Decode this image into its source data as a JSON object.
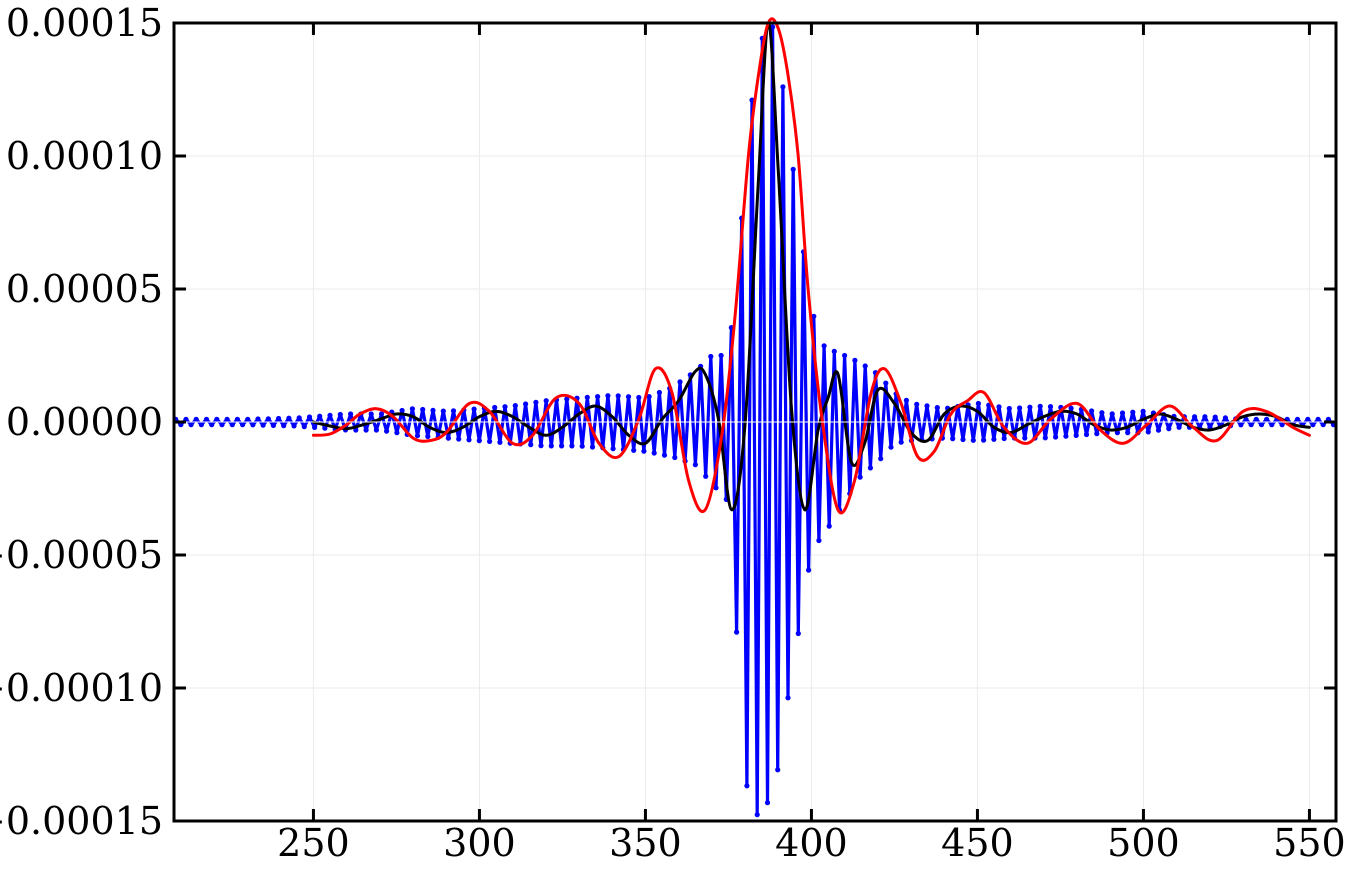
{
  "chart_data": {
    "type": "line",
    "title": "",
    "xlabel": "",
    "ylabel": "",
    "xlim": [
      208,
      558
    ],
    "ylim": [
      -0.00015,
      0.00015
    ],
    "grid": true,
    "x_tick_values": [
      250,
      300,
      350,
      400,
      450,
      500,
      550
    ],
    "x_tick_labels": [
      "250",
      "300",
      "350",
      "400",
      "450",
      "500",
      "550"
    ],
    "y_tick_values": [
      -0.00015,
      -0.0001,
      -5e-05,
      0,
      5e-05,
      0.0001,
      0.00015
    ],
    "y_tick_labels": [
      "−0.00015",
      "−0.00010",
      "−0.00005",
      "0.00000",
      "0.00005",
      "0.00010",
      "0.00015"
    ],
    "series": [
      {
        "color": "#0000ff",
        "style": "line-with-markers",
        "x": [
          215,
          230,
          245,
          260,
          270,
          280,
          290,
          300,
          310,
          320,
          330,
          340,
          350,
          358,
          365,
          370,
          375,
          378,
          381,
          384,
          386,
          388,
          390,
          392,
          395,
          398,
          402,
          406,
          410,
          415,
          420,
          425,
          430,
          440,
          450,
          460,
          470,
          480,
          490,
          500,
          510,
          520,
          530,
          540,
          550,
          556
        ],
        "y_upper": [
          1e-06,
          1e-06,
          1.5e-06,
          3e-06,
          3e-06,
          5e-06,
          4e-06,
          5e-06,
          6e-06,
          8e-06,
          9e-06,
          1e-05,
          9e-06,
          1.3e-05,
          1.9e-05,
          2.5e-05,
          2.5e-05,
          6e-05,
          0.00011,
          0.00014,
          0.000147,
          0.00015,
          0.00014,
          0.00012,
          9e-05,
          6e-05,
          3e-05,
          2.7e-05,
          2.5e-05,
          2.2e-05,
          1.8e-05,
          1.1e-05,
          7e-06,
          5e-06,
          7e-06,
          5e-06,
          6e-06,
          5e-06,
          3e-06,
          4e-06,
          2e-06,
          2e-06,
          1e-06,
          1e-06,
          1e-06,
          1e-06
        ],
        "y_lower": [
          -1e-06,
          -1e-06,
          -1.5e-06,
          -3e-06,
          -3e-06,
          -5e-06,
          -6e-06,
          -7e-06,
          -8e-06,
          -9e-06,
          -9e-06,
          -1e-05,
          -1.1e-05,
          -1.3e-05,
          -1.6e-05,
          -2.3e-05,
          -3e-05,
          -9e-05,
          -0.000145,
          -0.000148,
          -0.000145,
          -0.00014,
          -0.00013,
          -0.00011,
          -9e-05,
          -6e-05,
          -4.5e-05,
          -3.8e-05,
          -3e-05,
          -2e-05,
          -1.5e-05,
          -8e-06,
          -7e-06,
          -6e-06,
          -7e-06,
          -6e-06,
          -6e-06,
          -5e-06,
          -4e-06,
          -4e-06,
          -2e-06,
          -2e-06,
          -1e-06,
          -1e-06,
          -1e-06,
          -1e-06
        ]
      },
      {
        "color": "#000000",
        "style": "line",
        "x": [
          250,
          255,
          260,
          265,
          270,
          275,
          280,
          285,
          290,
          295,
          300,
          305,
          310,
          315,
          320,
          325,
          330,
          335,
          340,
          345,
          350,
          355,
          360,
          365,
          368,
          372,
          376,
          380,
          384,
          387,
          390,
          394,
          398,
          402,
          405,
          408,
          412,
          416,
          420,
          425,
          430,
          435,
          440,
          445,
          450,
          455,
          460,
          465,
          470,
          475,
          480,
          485,
          490,
          495,
          500,
          505,
          510,
          515,
          520,
          525,
          530,
          535,
          540,
          545,
          550
        ],
        "y": [
          0,
          -1.5e-06,
          -2.5e-06,
          -1e-06,
          1e-06,
          3e-06,
          2e-06,
          -2e-06,
          -4e-06,
          -2e-06,
          2e-06,
          4e-06,
          2e-06,
          -2e-06,
          -5e-06,
          -2e-06,
          3e-06,
          6e-06,
          2e-06,
          -5e-06,
          -8e-06,
          1e-06,
          8e-06,
          1.9e-05,
          1.8e-05,
          1e-06,
          -3.3e-05,
          -1e-06,
          9e-05,
          0.00015,
          9.5e-05,
          5e-06,
          -3.3e-05,
          -3e-06,
          9e-06,
          1.8e-05,
          -1.5e-05,
          -8e-06,
          1.2e-05,
          7e-06,
          -4e-06,
          -7e-06,
          3e-06,
          6e-06,
          4e-06,
          -2e-06,
          -4e-06,
          -1e-06,
          2e-06,
          4e-06,
          3e-06,
          -1e-06,
          -3e-06,
          -2e-06,
          1e-06,
          3e-06,
          1e-06,
          -2e-06,
          -3e-06,
          -1e-06,
          2e-06,
          3e-06,
          2e-06,
          -1e-06,
          -2e-06
        ]
      },
      {
        "color": "#ff0000",
        "style": "line",
        "x": [
          250,
          255,
          260,
          264,
          269,
          274,
          280,
          285,
          290,
          297,
          303,
          310,
          316,
          323,
          330,
          336,
          342,
          348,
          353,
          358,
          363,
          368,
          373,
          377,
          381,
          384,
          387,
          390,
          393,
          396,
          399,
          403,
          408,
          413,
          418,
          422,
          427,
          432,
          437,
          442,
          447,
          452,
          458,
          465,
          472,
          480,
          487,
          494,
          501,
          508,
          515,
          522,
          530,
          537,
          545,
          550
        ],
        "y": [
          -5e-06,
          -4.5e-06,
          -1e-06,
          3e-06,
          5e-06,
          2e-06,
          -6e-06,
          -7e-06,
          -4e-06,
          7e-06,
          4e-06,
          -8e-06,
          -5e-06,
          9e-06,
          7e-06,
          -8e-06,
          -1.3e-05,
          1e-06,
          2e-05,
          1.1e-05,
          -2.2e-05,
          -3.3e-05,
          -5e-06,
          4e-05,
          0.0001,
          0.00013,
          0.00015,
          0.000148,
          0.00013,
          0.0001,
          5e-05,
          3e-06,
          -3.3e-05,
          -2.2e-05,
          1.1e-05,
          2e-05,
          7e-06,
          -1.3e-05,
          -1.1e-05,
          3e-06,
          8e-06,
          1.1e-05,
          -2e-06,
          -8e-06,
          1e-06,
          7e-06,
          -3e-06,
          -8e-06,
          -1e-06,
          6e-06,
          -2e-06,
          -7e-06,
          4e-06,
          4e-06,
          -2e-06,
          -5e-06
        ]
      }
    ]
  }
}
